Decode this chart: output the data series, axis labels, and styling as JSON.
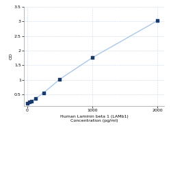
{
  "x_values": [
    0,
    31.25,
    62.5,
    125,
    250,
    500,
    1000,
    2000
  ],
  "y_values": [
    0.2,
    0.23,
    0.27,
    0.35,
    0.55,
    1.02,
    1.76,
    3.03
  ],
  "line_color": "#a8c8e8",
  "marker_color": "#1a3a6b",
  "marker_size": 3,
  "line_width": 1.0,
  "xlabel_line1": "Human Laminin beta 1 (LAMb1)",
  "xlabel_line2": "Concentration (pg/ml)",
  "ylabel": "OD",
  "xlim": [
    -50,
    2100
  ],
  "ylim": [
    0.1,
    3.5
  ],
  "x_ticks": [
    0,
    1000,
    2000
  ],
  "y_ticks": [
    0.5,
    1.0,
    1.5,
    2.0,
    2.5,
    3.0,
    3.5
  ],
  "y_tick_labels": [
    "0.5",
    "1",
    "1.5",
    "2",
    "2.5",
    "3",
    "3.5"
  ],
  "background_color": "#ffffff",
  "grid_color": "#c8d8e8",
  "tick_fontsize": 4.5,
  "label_fontsize": 4.5
}
